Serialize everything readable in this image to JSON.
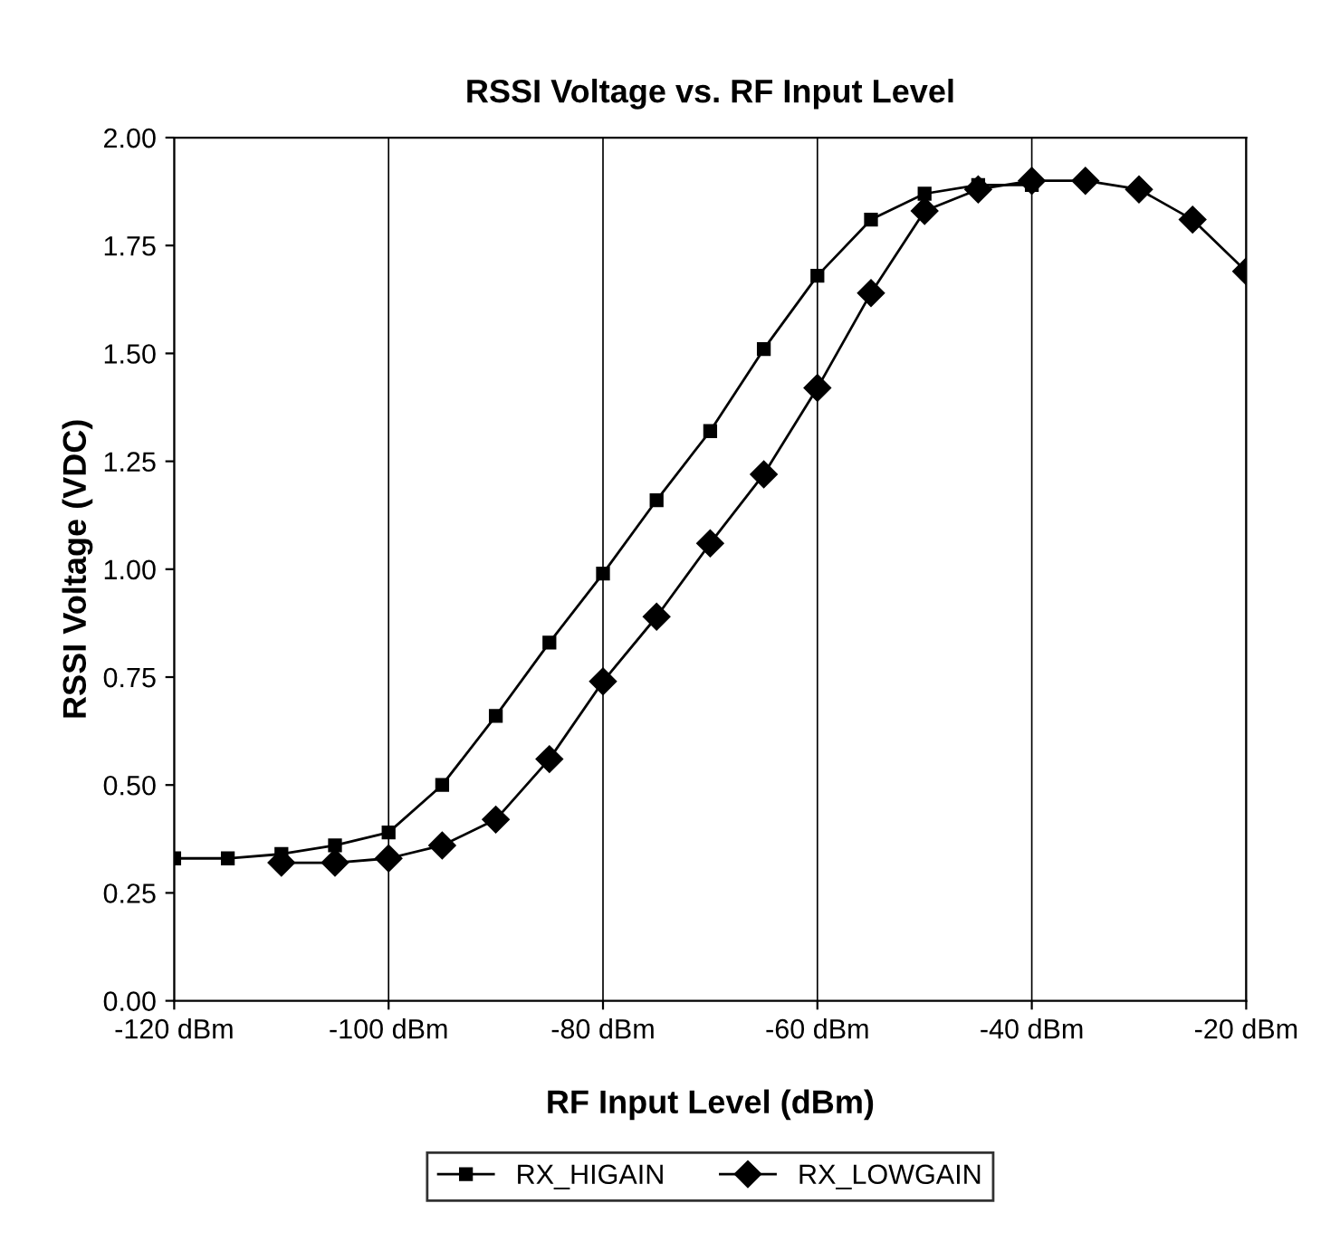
{
  "chart_data": {
    "type": "line",
    "title": "RSSI Voltage vs. RF Input Level",
    "xlabel": "RF Input Level (dBm)",
    "ylabel": "RSSI Voltage (VDC)",
    "xlim": [
      -120,
      -20
    ],
    "xticks": [
      {
        "value": -120,
        "label": "-120 dBm"
      },
      {
        "value": -100,
        "label": "-100 dBm"
      },
      {
        "value": -80,
        "label": "-80 dBm"
      },
      {
        "value": -60,
        "label": "-60 dBm"
      },
      {
        "value": -40,
        "label": "-40 dBm"
      },
      {
        "value": -20,
        "label": "-20 dBm"
      }
    ],
    "ylim": [
      0,
      2
    ],
    "yticks": [
      {
        "value": 0,
        "label": "0.00"
      },
      {
        "value": 0.25,
        "label": "0.25"
      },
      {
        "value": 0.5,
        "label": "0.50"
      },
      {
        "value": 0.75,
        "label": "0.75"
      },
      {
        "value": 1,
        "label": "1.00"
      },
      {
        "value": 1.25,
        "label": "1.25"
      },
      {
        "value": 1.5,
        "label": "1.50"
      },
      {
        "value": 1.75,
        "label": "1.75"
      },
      {
        "value": 2,
        "label": "2.00"
      }
    ],
    "grid": "x",
    "legend": "bottom",
    "line_style": "solid",
    "series": [
      {
        "name": "RX_HIGAIN",
        "color": "#000000",
        "marker": "square",
        "x": [
          -120,
          -115,
          -110,
          -105,
          -100,
          -95,
          -90,
          -85,
          -80,
          -75,
          -70,
          -65,
          -60,
          -55,
          -50,
          -45,
          -40
        ],
        "values": [
          0.33,
          0.33,
          0.34,
          0.36,
          0.39,
          0.5,
          0.66,
          0.83,
          0.99,
          1.16,
          1.32,
          1.51,
          1.68,
          1.81,
          1.87,
          1.89,
          1.89
        ]
      },
      {
        "name": "RX_LOWGAIN",
        "color": "#000000",
        "marker": "diamond",
        "x": [
          -110,
          -105,
          -100,
          -95,
          -90,
          -85,
          -80,
          -75,
          -70,
          -65,
          -60,
          -55,
          -50,
          -45,
          -40,
          -35,
          -30,
          -25,
          -20
        ],
        "values": [
          0.32,
          0.32,
          0.33,
          0.36,
          0.42,
          0.56,
          0.74,
          0.89,
          1.06,
          1.22,
          1.42,
          1.64,
          1.83,
          1.88,
          1.9,
          1.9,
          1.88,
          1.81,
          1.69
        ]
      }
    ]
  }
}
